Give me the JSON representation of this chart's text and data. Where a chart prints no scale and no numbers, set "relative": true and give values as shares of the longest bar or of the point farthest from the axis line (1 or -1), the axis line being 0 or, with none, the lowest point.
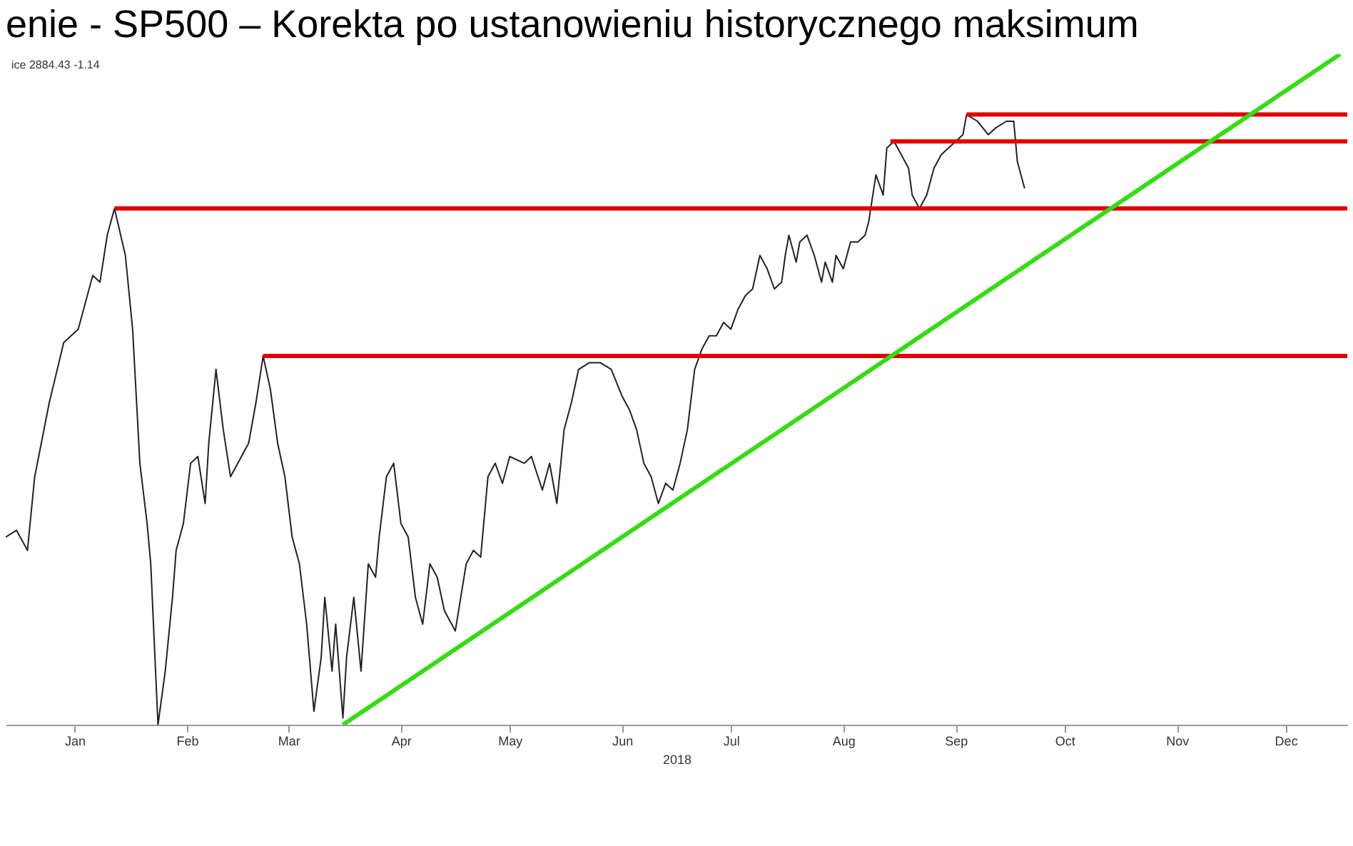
{
  "chart_data": {
    "type": "line",
    "relative": true,
    "title": "enie - SP500 – Korekta po ustanowieniu historycznego maksimum",
    "xlabel": "2018",
    "annotations": [
      "ice 2884.43  -1.14"
    ],
    "xlim": [
      "2017-12-27",
      "2019-01-01"
    ],
    "xticks": [
      {
        "value": "2018-01-15",
        "label": "Jan"
      },
      {
        "value": "2018-02-15",
        "label": "Feb"
      },
      {
        "value": "2018-03-15",
        "label": "Mar"
      },
      {
        "value": "2018-04-15",
        "label": "Apr"
      },
      {
        "value": "2018-05-15",
        "label": "May"
      },
      {
        "value": "2018-06-15",
        "label": "Jun"
      },
      {
        "value": "2018-07-15",
        "label": "Jul"
      },
      {
        "value": "2018-08-15",
        "label": "Aug"
      },
      {
        "value": "2018-09-15",
        "label": "Sep"
      },
      {
        "value": "2018-10-15",
        "label": "Oct"
      },
      {
        "value": "2018-11-15",
        "label": "Nov"
      },
      {
        "value": "2018-12-15",
        "label": "Dec"
      }
    ],
    "grid": false,
    "legend": false,
    "line_style": "solid",
    "series": [
      {
        "color": "#222222",
        "x": [
          "2017-12-27",
          "2017-12-30",
          "2018-01-02",
          "2018-01-04",
          "2018-01-08",
          "2018-01-12",
          "2018-01-16",
          "2018-01-20",
          "2018-01-22",
          "2018-01-24",
          "2018-01-26",
          "2018-01-29",
          "2018-01-31",
          "2018-02-02",
          "2018-02-04",
          "2018-02-05",
          "2018-02-07",
          "2018-02-09",
          "2018-02-11",
          "2018-02-12",
          "2018-02-14",
          "2018-02-16",
          "2018-02-18",
          "2018-02-20",
          "2018-02-21",
          "2018-02-23",
          "2018-02-25",
          "2018-02-27",
          "2018-03-01",
          "2018-03-04",
          "2018-03-06",
          "2018-03-08",
          "2018-03-10",
          "2018-03-12",
          "2018-03-14",
          "2018-03-16",
          "2018-03-18",
          "2018-03-20",
          "2018-03-22",
          "2018-03-24",
          "2018-03-25",
          "2018-03-27",
          "2018-03-28",
          "2018-03-30",
          "2018-03-31",
          "2018-04-02",
          "2018-04-04",
          "2018-04-06",
          "2018-04-08",
          "2018-04-09",
          "2018-04-11",
          "2018-04-13",
          "2018-04-15",
          "2018-04-17",
          "2018-04-19",
          "2018-04-21",
          "2018-04-23",
          "2018-04-25",
          "2018-04-27",
          "2018-04-30",
          "2018-05-03",
          "2018-05-05",
          "2018-05-07",
          "2018-05-09",
          "2018-05-11",
          "2018-05-13",
          "2018-05-15",
          "2018-05-19",
          "2018-05-21",
          "2018-05-24",
          "2018-05-26",
          "2018-05-28",
          "2018-05-30",
          "2018-06-01",
          "2018-06-03",
          "2018-06-06",
          "2018-06-09",
          "2018-06-12",
          "2018-06-15",
          "2018-06-17",
          "2018-06-19",
          "2018-06-21",
          "2018-06-23",
          "2018-06-25",
          "2018-06-27",
          "2018-06-29",
          "2018-07-01",
          "2018-07-03",
          "2018-07-05",
          "2018-07-07",
          "2018-07-09",
          "2018-07-11",
          "2018-07-13",
          "2018-07-15",
          "2018-07-17",
          "2018-07-19",
          "2018-07-21",
          "2018-07-23",
          "2018-07-25",
          "2018-07-27",
          "2018-07-29",
          "2018-07-30",
          "2018-07-31",
          "2018-08-02",
          "2018-08-03",
          "2018-08-05",
          "2018-08-07",
          "2018-08-09",
          "2018-08-10",
          "2018-08-12",
          "2018-08-13",
          "2018-08-15",
          "2018-08-17",
          "2018-08-19",
          "2018-08-21",
          "2018-08-22",
          "2018-08-24",
          "2018-08-26",
          "2018-08-27",
          "2018-08-29",
          "2018-08-31",
          "2018-09-02",
          "2018-09-03",
          "2018-09-05",
          "2018-09-07",
          "2018-09-09",
          "2018-09-11",
          "2018-09-13",
          "2018-09-15",
          "2018-09-17",
          "2018-09-18",
          "2018-09-21",
          "2018-09-24",
          "2018-09-26",
          "2018-09-29",
          "2018-10-01",
          "2018-10-02",
          "2018-10-04"
        ],
        "values": [
          0.28,
          0.29,
          0.26,
          0.37,
          0.48,
          0.57,
          0.59,
          0.67,
          0.66,
          0.73,
          0.77,
          0.7,
          0.59,
          0.39,
          0.3,
          0.24,
          0,
          0.08,
          0.19,
          0.26,
          0.3,
          0.39,
          0.4,
          0.33,
          0.42,
          0.53,
          0.44,
          0.37,
          0.39,
          0.42,
          0.48,
          0.55,
          0.5,
          0.42,
          0.37,
          0.28,
          0.24,
          0.15,
          0.02,
          0.1,
          0.19,
          0.08,
          0.15,
          0.01,
          0.1,
          0.19,
          0.08,
          0.24,
          0.22,
          0.28,
          0.37,
          0.39,
          0.3,
          0.28,
          0.19,
          0.15,
          0.24,
          0.22,
          0.17,
          0.14,
          0.24,
          0.26,
          0.25,
          0.37,
          0.39,
          0.36,
          0.4,
          0.39,
          0.4,
          0.35,
          0.39,
          0.33,
          0.44,
          0.48,
          0.53,
          0.54,
          0.54,
          0.53,
          0.49,
          0.47,
          0.44,
          0.39,
          0.37,
          0.33,
          0.36,
          0.35,
          0.39,
          0.44,
          0.53,
          0.56,
          0.58,
          0.58,
          0.6,
          0.59,
          0.62,
          0.64,
          0.65,
          0.7,
          0.68,
          0.65,
          0.66,
          0.7,
          0.73,
          0.69,
          0.72,
          0.73,
          0.7,
          0.66,
          0.69,
          0.66,
          0.7,
          0.68,
          0.72,
          0.72,
          0.73,
          0.75,
          0.82,
          0.79,
          0.86,
          0.87,
          0.85,
          0.83,
          0.79,
          0.77,
          0.79,
          0.83,
          0.85,
          0.86,
          0.87,
          0.88,
          0.91,
          0.9,
          0.88,
          0.89,
          0.9,
          0.9,
          0.84,
          0.8
        ]
      },
      {
        "color": "#e00000",
        "x": [
          "2018-09-18",
          "2019-01-01"
        ],
        "values": [
          0.91,
          0.91
        ]
      },
      {
        "color": "#e00000",
        "x": [
          "2018-08-28",
          "2019-01-01"
        ],
        "values": [
          0.87,
          0.87
        ]
      },
      {
        "color": "#e00000",
        "x": [
          "2018-01-26",
          "2019-01-01"
        ],
        "values": [
          0.77,
          0.77
        ]
      },
      {
        "color": "#e00000",
        "x": [
          "2018-03-08",
          "2019-01-01"
        ],
        "values": [
          0.55,
          0.55
        ]
      },
      {
        "color": "#33dd11",
        "x": [
          "2018-03-30",
          "2018-12-30"
        ],
        "values": [
          0,
          1
        ]
      }
    ]
  }
}
